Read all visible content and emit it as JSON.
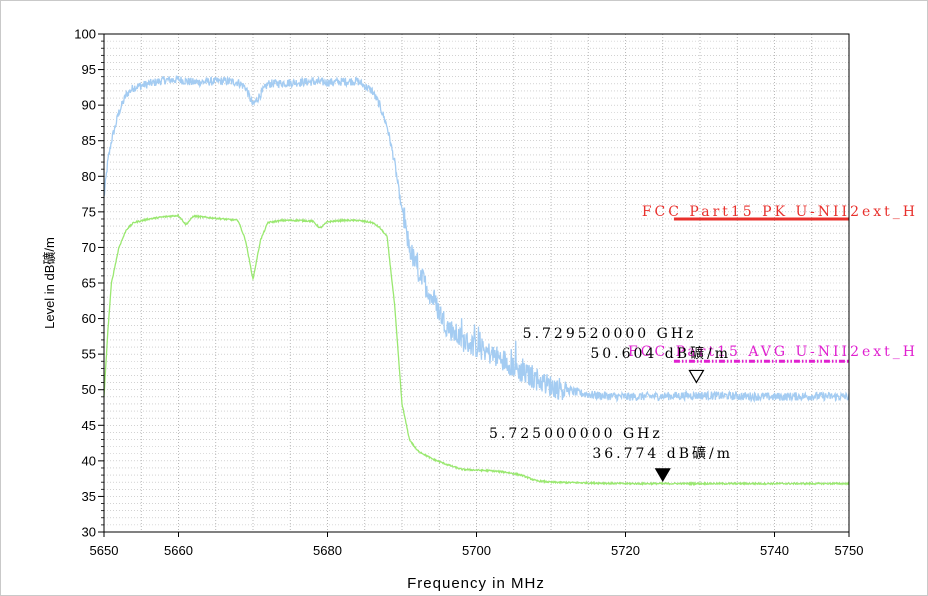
{
  "chart_data": {
    "type": "line",
    "xlabel": "Frequency in MHz",
    "ylabel": "Level in dB礦/m",
    "xlim": [
      5650,
      5750
    ],
    "ylim": [
      30,
      100
    ],
    "x_ticks": [
      5650,
      5660,
      5680,
      5700,
      5720,
      5740,
      5750
    ],
    "y_ticks": [
      30,
      35,
      40,
      45,
      50,
      55,
      60,
      65,
      70,
      75,
      80,
      85,
      90,
      95,
      100
    ],
    "grid": true,
    "colors": {
      "peak": "#a4ccf2",
      "avg": "#9ae870",
      "limit_pk": "#e8302c",
      "limit_avg": "#e020d0"
    },
    "series": [
      {
        "key": "peak",
        "x": [
          5650,
          5650.5,
          5651,
          5652,
          5653,
          5654,
          5656,
          5658,
          5660,
          5662,
          5664,
          5666,
          5668,
          5669,
          5670,
          5671,
          5672,
          5674,
          5676,
          5678,
          5680,
          5682,
          5684,
          5686,
          5687,
          5688,
          5689,
          5690,
          5691,
          5692,
          5694,
          5696,
          5698,
          5700,
          5702,
          5704,
          5706,
          5708,
          5710,
          5712,
          5714,
          5716,
          5718,
          5720,
          5725,
          5730,
          5735,
          5740,
          5745,
          5750
        ],
        "y": [
          77,
          82,
          85,
          89,
          91.5,
          92.5,
          93,
          93.5,
          93.6,
          93.2,
          93.3,
          93.4,
          93.2,
          92.5,
          90,
          91.5,
          93,
          93.1,
          93.2,
          93.3,
          93.2,
          93.3,
          93.4,
          92,
          90,
          87,
          82,
          75,
          70,
          67,
          63,
          59,
          57,
          56,
          55,
          54,
          52.5,
          51.5,
          50.5,
          50,
          49.5,
          49.2,
          49.1,
          49,
          49.1,
          49.2,
          49.1,
          49,
          49.1,
          49
        ]
      },
      {
        "key": "avg",
        "x": [
          5650,
          5650.5,
          5651,
          5652,
          5653,
          5654,
          5656,
          5658,
          5660,
          5661,
          5662,
          5664,
          5666,
          5668,
          5669,
          5670,
          5671,
          5672,
          5674,
          5676,
          5678,
          5679,
          5680,
          5682,
          5684,
          5686,
          5687,
          5688,
          5689,
          5690,
          5691,
          5692,
          5694,
          5696,
          5698,
          5700,
          5702,
          5704,
          5706,
          5708,
          5710,
          5715,
          5720,
          5725,
          5730,
          5735,
          5740,
          5745,
          5750
        ],
        "y": [
          49,
          58,
          65,
          70,
          72.5,
          73.5,
          74,
          74.3,
          74.5,
          73.2,
          74.4,
          74.2,
          74,
          73.8,
          71,
          65.5,
          71,
          73.5,
          73.8,
          73.8,
          73.7,
          72.7,
          73.6,
          73.8,
          73.8,
          73.5,
          72.8,
          71.5,
          62,
          48,
          43,
          41.5,
          40.3,
          39.5,
          38.8,
          38.7,
          38.6,
          38.4,
          38,
          37.2,
          37,
          36.9,
          36.8,
          36.8,
          36.8,
          36.8,
          36.8,
          36.8,
          36.8
        ]
      },
      {
        "key": "limit_pk",
        "x": [
          5726.5,
          5750
        ],
        "y": [
          74,
          74
        ]
      },
      {
        "key": "limit_avg",
        "x": [
          5726.5,
          5750
        ],
        "y": [
          54,
          54
        ]
      }
    ],
    "limit_labels": {
      "pk": "FCC Part15 PK U-NII2ext_H",
      "avg": "FCC Part15 AVG U-NII2ext_H"
    },
    "markers": [
      {
        "x": 5729.52,
        "y": 50.604,
        "filled": false,
        "line1": "5.729520000 GHz",
        "line2": "50.604 dB礦/m"
      },
      {
        "x": 5725,
        "y": 36.774,
        "filled": true,
        "line1": "5.725000000 GHz",
        "line2": "36.774 dB礦/m"
      }
    ]
  }
}
